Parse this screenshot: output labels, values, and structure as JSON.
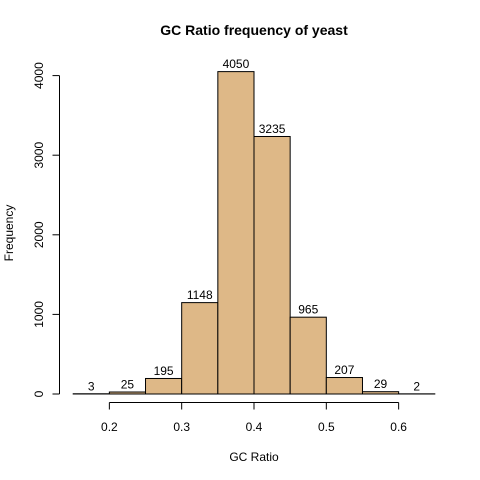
{
  "chart_data": {
    "type": "bar",
    "title": "GC Ratio frequency of yeast",
    "xlabel": "GC Ratio",
    "ylabel": "Frequency",
    "bin_edges": [
      0.15,
      0.2,
      0.25,
      0.3,
      0.35,
      0.4,
      0.45,
      0.5,
      0.55,
      0.6,
      0.65
    ],
    "values": [
      3,
      25,
      195,
      1148,
      4050,
      3235,
      965,
      207,
      29,
      2
    ],
    "labels": [
      "3",
      "25",
      "195",
      "1148",
      "4050",
      "3235",
      "965",
      "207",
      "29",
      "2"
    ],
    "xlim": [
      0.15,
      0.65
    ],
    "ylim": [
      0,
      4050
    ],
    "x_ticks": [
      0.2,
      0.3,
      0.4,
      0.5,
      0.6
    ],
    "x_tick_labels": [
      "0.2",
      "0.3",
      "0.4",
      "0.5",
      "0.6"
    ],
    "y_ticks": [
      0,
      1000,
      2000,
      3000,
      4000
    ],
    "y_tick_labels": [
      "0",
      "1000",
      "2000",
      "3000",
      "4000"
    ],
    "bar_color": "#DEB887",
    "grid": false,
    "legend": "none"
  }
}
